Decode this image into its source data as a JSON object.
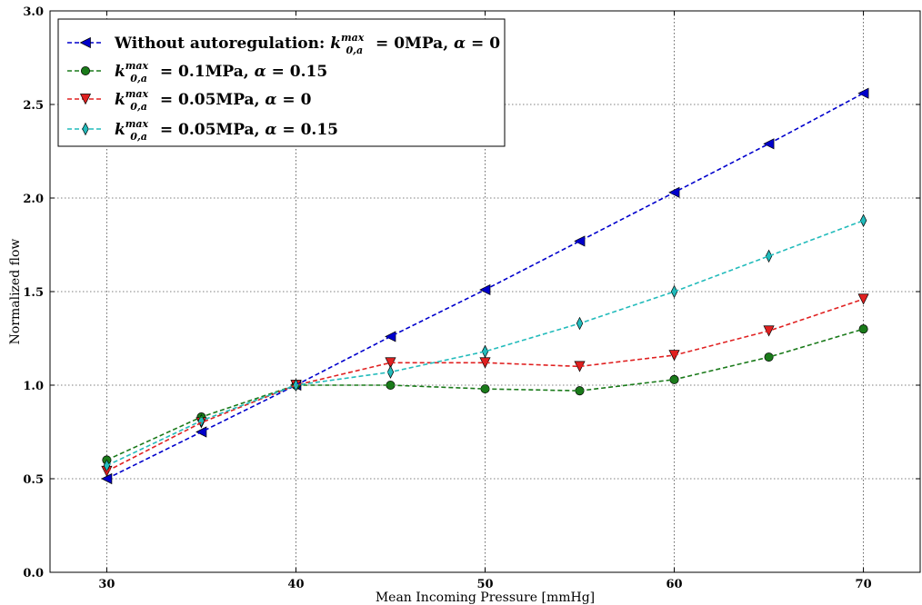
{
  "chart_data": {
    "type": "line",
    "xlabel": "Mean Incoming Pressure [mmHg]",
    "ylabel": "Normalized flow",
    "xlim": [
      27,
      73
    ],
    "ylim": [
      0.0,
      3.0
    ],
    "xticks": [
      30,
      40,
      50,
      60,
      70
    ],
    "yticks": [
      0.0,
      0.5,
      1.0,
      1.5,
      2.0,
      2.5,
      3.0
    ],
    "xtick_labels": [
      "30",
      "40",
      "50",
      "60",
      "70"
    ],
    "ytick_labels": [
      "0.0",
      "0.5",
      "1.0",
      "1.5",
      "2.0",
      "2.5",
      "3.0"
    ],
    "grid": true,
    "legend_position": "top-left",
    "x": [
      30,
      35,
      40,
      45,
      50,
      55,
      60,
      65,
      70
    ],
    "series": [
      {
        "name": "Without autoregulation: k_{0,a}^{max} = 0MPa, α = 0",
        "legend": {
          "prefix": "Without autoregulation: ",
          "value": "0MPa",
          "alpha": "0"
        },
        "color": "#0000cc",
        "marker": "triangle-left",
        "values": [
          0.5,
          0.75,
          1.0,
          1.26,
          1.51,
          1.77,
          2.03,
          2.29,
          2.56
        ]
      },
      {
        "name": "k_{0,a}^{max} = 0.1MPa, α = 0.15",
        "legend": {
          "prefix": "",
          "value": "0.1MPa",
          "alpha": "0.15"
        },
        "color": "#1a7a1a",
        "marker": "circle",
        "values": [
          0.6,
          0.83,
          1.0,
          1.0,
          0.98,
          0.97,
          1.03,
          1.15,
          1.3
        ]
      },
      {
        "name": "k_{0,a}^{max} = 0.05MPa, α = 0",
        "legend": {
          "prefix": "",
          "value": "0.05MPa",
          "alpha": "0"
        },
        "color": "#e02020",
        "marker": "triangle-down",
        "values": [
          0.54,
          0.8,
          1.0,
          1.12,
          1.12,
          1.1,
          1.16,
          1.29,
          1.46
        ]
      },
      {
        "name": "k_{0,a}^{max} = 0.05MPa, α = 0.15",
        "legend": {
          "prefix": "",
          "value": "0.05MPa",
          "alpha": "0.15"
        },
        "color": "#22bbbb",
        "marker": "thin-diamond",
        "values": [
          0.57,
          0.81,
          1.0,
          1.07,
          1.18,
          1.33,
          1.5,
          1.69,
          1.88
        ]
      }
    ]
  },
  "legend_math": {
    "k": "k",
    "sup": "max",
    "sub": "0,a",
    "eq": " = ",
    "sep": ", ",
    "alpha": "α"
  }
}
